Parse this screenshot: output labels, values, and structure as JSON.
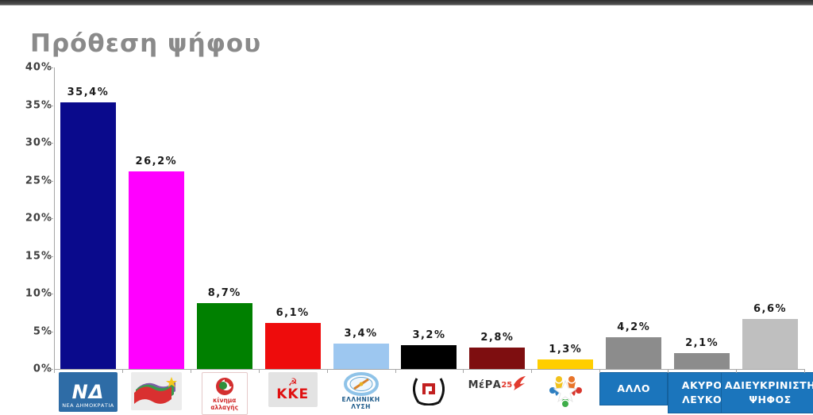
{
  "window": {
    "top_strip_color": "#3a3a3a"
  },
  "header": {
    "title": "Πρόθεση ψήφου",
    "title_color": "#8a8a8a"
  },
  "chart_data": {
    "type": "bar",
    "title": "Πρόθεση ψήφου",
    "xlabel": "",
    "ylabel": "",
    "ylim": [
      0,
      40
    ],
    "ytick_step": 5,
    "yticks": [
      "40%",
      "35%",
      "30%",
      "25%",
      "20%",
      "15%",
      "10%",
      "5%",
      "0%"
    ],
    "grid": false,
    "legend_position": "none",
    "value_label_decimal": "comma",
    "parties": [
      {
        "name": "ΝΕΑ ΔΗΜΟΚΡΑΤΙΑ",
        "value": 35.4,
        "label": "35,4%",
        "color": "#0a0a8c",
        "logo": "nea-dimokratia-logo",
        "logo_monogram": "ΝΔ",
        "logo_caption": "ΝΕΑ ΔΗΜΟΚΡΑΤΙΑ"
      },
      {
        "name": "ΣΥΡΙΖΑ",
        "value": 26.2,
        "label": "26,2%",
        "color": "#ff00ff",
        "logo": "syriza-flags-logo"
      },
      {
        "name": "Κίνημα Αλλαγής",
        "value": 8.7,
        "label": "8,7%",
        "color": "#008000",
        "logo": "kinima-allagis-logo",
        "logo_text": "κίνημα αλλαγής"
      },
      {
        "name": "ΚΚΕ",
        "value": 6.1,
        "label": "6,1%",
        "color": "#ee0c0c",
        "logo": "kke-logo",
        "logo_text": "ΚΚΕ",
        "logo_symbol": "hammer-and-sickle"
      },
      {
        "name": "ΕΛΛΗΝΙΚΗ ΛΥΣΗ",
        "value": 3.4,
        "label": "3,4%",
        "color": "#9dc7f0",
        "logo": "elliniki-lysi-compass-logo",
        "logo_text": "ΕΛΛΗΝΙΚΗ ΛΥΣΗ"
      },
      {
        "name": "Χρυσή Αυγή",
        "value": 3.2,
        "label": "3,2%",
        "color": "#000000",
        "logo": "meander-wreath-logo"
      },
      {
        "name": "ΜέΡΑ25",
        "value": 2.8,
        "label": "2,8%",
        "color": "#7e0e10",
        "logo": "mera25-logo",
        "logo_text_main": "ΜέΡΑ",
        "logo_text_sub": "25"
      },
      {
        "name": "",
        "value": 1.3,
        "label": "1,3%",
        "color": "#ffce00",
        "logo": "people-star-logo"
      },
      {
        "name": "ΑΛΛΟ",
        "value": 4.2,
        "label": "4,2%",
        "color": "#8c8c8c",
        "label_box": "ΑΛΛΟ",
        "label_box_color": "#1b75bc"
      },
      {
        "name": "ΑΚΥΡΟ ΛΕΥΚΟ",
        "value": 2.1,
        "label": "2,1%",
        "color": "#8c8c8c",
        "label_box": "ΑΚΥΡΟ ΛΕΥΚΟ",
        "label_box_color": "#1b75bc"
      },
      {
        "name": "ΑΔΙΕΥΚΡΙΝΙΣΤΗ ΨΗΦΟΣ",
        "value": 6.6,
        "label": "6,6%",
        "color": "#bfbfbf",
        "label_box": "ΑΔΙΕΥΚΡΙΝΙΣΤΗ ΨΗΦΟΣ",
        "label_box_color": "#1b75bc"
      }
    ]
  }
}
